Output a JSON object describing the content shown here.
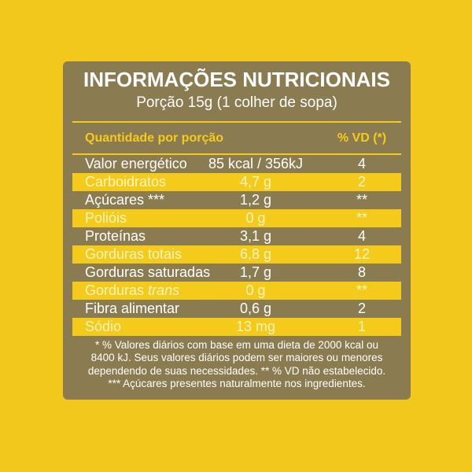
{
  "colors": {
    "background": "#f2c81c",
    "panel": "#8b7b50",
    "accent_yellow": "#f5cb1b",
    "row_text_light": "#fff4c2"
  },
  "title": "INFORMAÇÕES NUTRICIONAIS",
  "subtitle": "Porção 15g (1 colher de sopa)",
  "header": {
    "quantity": "Quantidade por porção",
    "vd": "% VD (*)"
  },
  "rows": [
    {
      "name": "Valor energético",
      "amount": "85 kcal / 356kJ",
      "vd": "4"
    },
    {
      "name": "Carboidratos",
      "amount": "4,7 g",
      "vd": "2"
    },
    {
      "name": "Açúcares ***",
      "amount": "1,2 g",
      "vd": "**"
    },
    {
      "name": "Polióis",
      "amount": "0 g",
      "vd": "**"
    },
    {
      "name": "Proteínas",
      "amount": "3,1 g",
      "vd": "4"
    },
    {
      "name": "Gorduras totais",
      "amount": "6,8 g",
      "vd": "12"
    },
    {
      "name": "Gorduras saturadas",
      "amount": "1,7 g",
      "vd": "8"
    },
    {
      "name": "Gorduras",
      "name_italic": "trans",
      "amount": "0 g",
      "vd": "**"
    },
    {
      "name": "Fibra alimentar",
      "amount": "0,6 g",
      "vd": "2"
    },
    {
      "name": "Sódio",
      "amount": "13 mg",
      "vd": "1"
    }
  ],
  "footnotes": [
    "* % Valores diários com base em uma dieta de 2000 kcal ou",
    "8400 kJ. Seus valores diários podem ser maiores ou menores",
    "dependendo de suas necessidades. ** % VD não estabelecido.",
    "*** Açúcares presentes naturalmente nos ingredientes."
  ]
}
